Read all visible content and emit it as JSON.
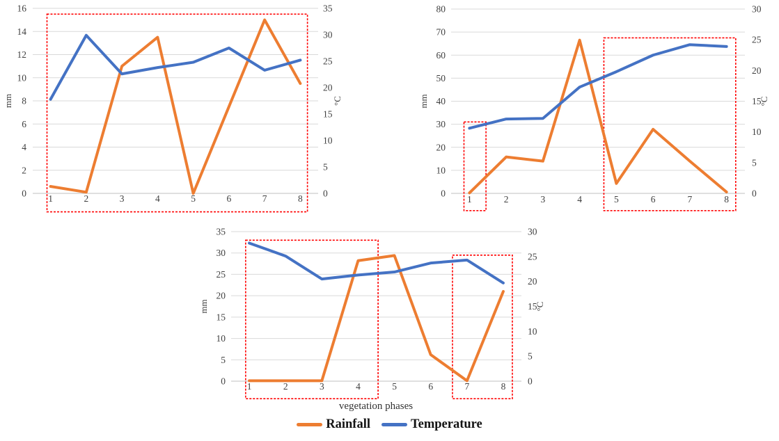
{
  "colors": {
    "rainfall": "#ED7D31",
    "temperature": "#4472C4",
    "annotation": "#FF0000",
    "grid": "#D9D9D9",
    "axis_line": "#BFBFBF",
    "text": "#404040",
    "background": "#FFFFFF"
  },
  "legend": {
    "rainfall_label": "Rainfall",
    "temperature_label": "Temperature"
  },
  "chart_data": [
    {
      "id": "top-left",
      "type": "line",
      "x": [
        1,
        2,
        3,
        4,
        5,
        6,
        7,
        8
      ],
      "xlabel": "",
      "left_axis": {
        "title": "mm",
        "min": 0,
        "max": 16,
        "step": 2
      },
      "right_axis": {
        "title": "°C",
        "min": 0,
        "max": 35,
        "step": 5
      },
      "grid": true,
      "series": [
        {
          "name": "Rainfall",
          "axis": "left",
          "unit": "mm",
          "color": "#ED7D31",
          "values": [
            0.6,
            0.1,
            11,
            13.5,
            0,
            7.5,
            15,
            9.5
          ]
        },
        {
          "name": "Temperature",
          "axis": "right",
          "unit": "°C",
          "color": "#4472C4",
          "values": [
            17.8,
            29.9,
            22.6,
            23.8,
            24.8,
            27.5,
            23.3,
            25.2
          ]
        }
      ],
      "highlight_boxes": [
        {
          "x_from": 0.9,
          "x_to": 8.2,
          "y_from": -1.6,
          "y_to": 15.5,
          "y_units": "mm"
        }
      ]
    },
    {
      "id": "top-right",
      "type": "line",
      "x": [
        1,
        2,
        3,
        4,
        5,
        6,
        7,
        8
      ],
      "xlabel": "",
      "left_axis": {
        "title": "mm",
        "min": 0,
        "max": 80,
        "step": 10
      },
      "right_axis": {
        "title": "°C",
        "min": 0,
        "max": 30,
        "step": 5
      },
      "grid": true,
      "series": [
        {
          "name": "Rainfall",
          "axis": "left",
          "unit": "mm",
          "color": "#ED7D31",
          "values": [
            0.2,
            15.8,
            14,
            66.5,
            4.3,
            27.8,
            14,
            0.6
          ]
        },
        {
          "name": "Temperature",
          "axis": "right",
          "unit": "°C",
          "color": "#4472C4",
          "values": [
            10.6,
            12.1,
            12.2,
            17.3,
            19.8,
            22.5,
            24.2,
            23.9
          ]
        }
      ],
      "highlight_boxes": [
        {
          "x_from": 0.85,
          "x_to": 1.45,
          "y_from": -7.5,
          "y_to": 31,
          "y_units": "mm"
        },
        {
          "x_from": 4.66,
          "x_to": 8.25,
          "y_from": -7.5,
          "y_to": 67.5,
          "y_units": "mm"
        }
      ]
    },
    {
      "id": "bottom-center",
      "type": "line",
      "x": [
        1,
        2,
        3,
        4,
        5,
        6,
        7,
        8
      ],
      "xlabel": "vegetation phases",
      "left_axis": {
        "title": "mm",
        "min": 0,
        "max": 35,
        "step": 5
      },
      "right_axis": {
        "title": "°C",
        "min": 0,
        "max": 30,
        "step": 5
      },
      "grid": true,
      "series": [
        {
          "name": "Rainfall",
          "axis": "left",
          "unit": "mm",
          "color": "#ED7D31",
          "values": [
            0.1,
            0.1,
            0.1,
            28.2,
            29.4,
            6.2,
            0.1,
            21
          ]
        },
        {
          "name": "Temperature",
          "axis": "right",
          "unit": "°C",
          "color": "#4472C4",
          "values": [
            27.7,
            25.1,
            20.5,
            21.3,
            21.9,
            23.7,
            24.3,
            19.7
          ]
        }
      ],
      "highlight_boxes": [
        {
          "x_from": 0.9,
          "x_to": 4.55,
          "y_from": -4.1,
          "y_to": 33,
          "y_units": "mm"
        },
        {
          "x_from": 6.6,
          "x_to": 8.25,
          "y_from": -4.1,
          "y_to": 29.5,
          "y_units": "mm"
        }
      ]
    }
  ]
}
